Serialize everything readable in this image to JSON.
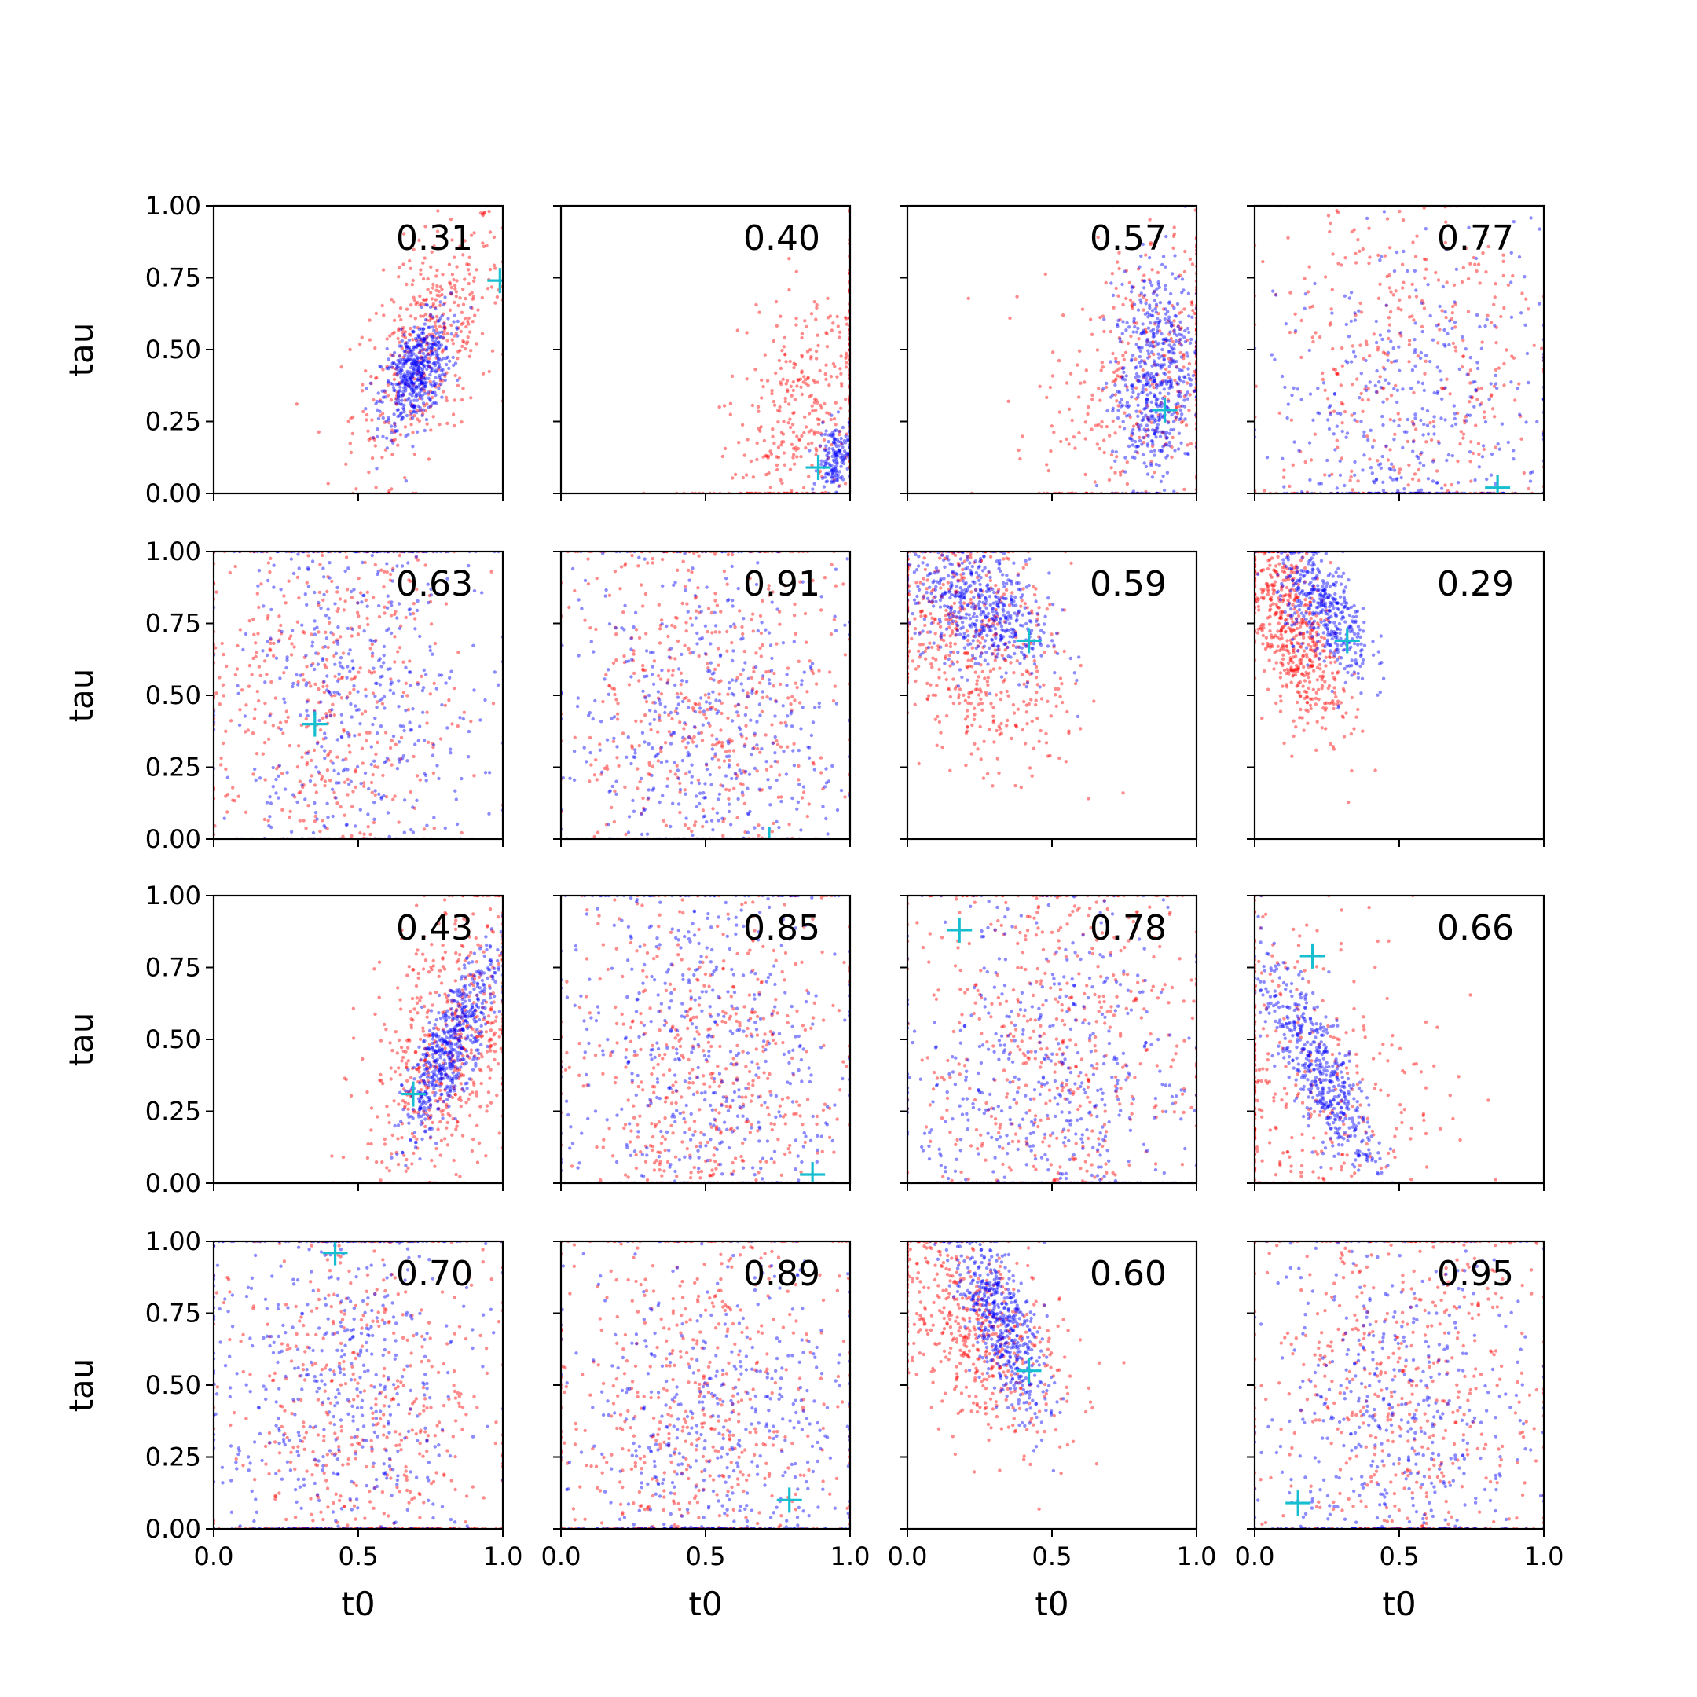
{
  "chart_data": {
    "type": "scatter",
    "layout": "4x4 grid of scatter subplots, shared axes",
    "xlabel": "t0",
    "ylabel": "tau",
    "xlim": [
      0,
      1
    ],
    "ylim": [
      0,
      1
    ],
    "x_ticks": [
      "0.0",
      "0.5",
      "1.0"
    ],
    "y_ticks": [
      "0.00",
      "0.25",
      "0.50",
      "0.75",
      "1.00"
    ],
    "colors": {
      "series_a": "#ff0000",
      "series_b": "#0000ff",
      "marker": "#17becf",
      "axes": "#000000"
    },
    "grid": false,
    "legend": "none",
    "panels": [
      {
        "label": "0.31",
        "marker": [
          0.99,
          0.74
        ],
        "red": {
          "n": 420,
          "cx": 0.74,
          "cy": 0.52,
          "sx": 0.13,
          "sy": 0.22,
          "rho": 0.55
        },
        "blue": {
          "n": 520,
          "cx": 0.7,
          "cy": 0.42,
          "sx": 0.06,
          "sy": 0.1,
          "rho": 0.5
        }
      },
      {
        "label": "0.40",
        "marker": [
          0.89,
          0.09
        ],
        "red": {
          "n": 380,
          "cx": 0.85,
          "cy": 0.28,
          "sx": 0.15,
          "sy": 0.25,
          "rho": 0.5
        },
        "blue": {
          "n": 160,
          "cx": 0.95,
          "cy": 0.13,
          "sx": 0.03,
          "sy": 0.06,
          "rho": 0.3
        }
      },
      {
        "label": "0.57",
        "marker": [
          0.89,
          0.29
        ],
        "red": {
          "n": 380,
          "cx": 0.82,
          "cy": 0.4,
          "sx": 0.18,
          "sy": 0.28,
          "rho": 0.3
        },
        "blue": {
          "n": 540,
          "cx": 0.85,
          "cy": 0.4,
          "sx": 0.07,
          "sy": 0.2,
          "rho": 0.2
        }
      },
      {
        "label": "0.77",
        "marker": [
          0.84,
          0.02
        ],
        "red": {
          "n": 420,
          "cx": 0.55,
          "cy": 0.45,
          "sx": 0.4,
          "sy": 0.4,
          "rho": 0
        },
        "blue": {
          "n": 420,
          "cx": 0.6,
          "cy": 0.25,
          "sx": 0.4,
          "sy": 0.3,
          "rho": 0
        }
      },
      {
        "label": "0.63",
        "marker": [
          0.35,
          0.4
        ],
        "red": {
          "n": 520,
          "cx": 0.3,
          "cy": 0.45,
          "sx": 0.35,
          "sy": 0.4,
          "rho": 0
        },
        "blue": {
          "n": 520,
          "cx": 0.45,
          "cy": 0.5,
          "sx": 0.35,
          "sy": 0.4,
          "rho": 0
        }
      },
      {
        "label": "0.91",
        "marker": [
          0.72,
          0.0
        ],
        "red": {
          "n": 560,
          "cx": 0.5,
          "cy": 0.45,
          "sx": 0.4,
          "sy": 0.4,
          "rho": 0
        },
        "blue": {
          "n": 500,
          "cx": 0.5,
          "cy": 0.35,
          "sx": 0.4,
          "sy": 0.35,
          "rho": 0
        }
      },
      {
        "label": "0.59",
        "marker": [
          0.42,
          0.69
        ],
        "red": {
          "n": 560,
          "cx": 0.2,
          "cy": 0.7,
          "sx": 0.18,
          "sy": 0.22,
          "rho": -0.4
        },
        "blue": {
          "n": 520,
          "cx": 0.25,
          "cy": 0.8,
          "sx": 0.12,
          "sy": 0.12,
          "rho": -0.4
        }
      },
      {
        "label": "0.29",
        "marker": [
          0.32,
          0.69
        ],
        "red": {
          "n": 560,
          "cx": 0.12,
          "cy": 0.74,
          "sx": 0.09,
          "sy": 0.18,
          "rho": -0.6
        },
        "blue": {
          "n": 420,
          "cx": 0.24,
          "cy": 0.8,
          "sx": 0.08,
          "sy": 0.12,
          "rho": -0.6
        }
      },
      {
        "label": "0.43",
        "marker": [
          0.69,
          0.31
        ],
        "red": {
          "n": 560,
          "cx": 0.8,
          "cy": 0.45,
          "sx": 0.14,
          "sy": 0.28,
          "rho": 0.4
        },
        "blue": {
          "n": 580,
          "cx": 0.82,
          "cy": 0.48,
          "sx": 0.08,
          "sy": 0.16,
          "rho": 0.8
        }
      },
      {
        "label": "0.85",
        "marker": [
          0.87,
          0.03
        ],
        "red": {
          "n": 560,
          "cx": 0.5,
          "cy": 0.35,
          "sx": 0.4,
          "sy": 0.35,
          "rho": 0
        },
        "blue": {
          "n": 560,
          "cx": 0.5,
          "cy": 0.4,
          "sx": 0.4,
          "sy": 0.4,
          "rho": 0
        }
      },
      {
        "label": "0.78",
        "marker": [
          0.18,
          0.88
        ],
        "red": {
          "n": 560,
          "cx": 0.5,
          "cy": 0.45,
          "sx": 0.4,
          "sy": 0.4,
          "rho": 0
        },
        "blue": {
          "n": 560,
          "cx": 0.45,
          "cy": 0.3,
          "sx": 0.4,
          "sy": 0.35,
          "rho": 0
        }
      },
      {
        "label": "0.66",
        "marker": [
          0.2,
          0.79
        ],
        "red": {
          "n": 420,
          "cx": 0.15,
          "cy": 0.3,
          "sx": 0.25,
          "sy": 0.35,
          "rho": 0
        },
        "blue": {
          "n": 520,
          "cx": 0.22,
          "cy": 0.4,
          "sx": 0.1,
          "sy": 0.18,
          "rho": -0.8
        }
      },
      {
        "label": "0.70",
        "marker": [
          0.42,
          0.96
        ],
        "red": {
          "n": 560,
          "cx": 0.55,
          "cy": 0.4,
          "sx": 0.4,
          "sy": 0.4,
          "rho": 0
        },
        "blue": {
          "n": 560,
          "cx": 0.35,
          "cy": 0.5,
          "sx": 0.4,
          "sy": 0.4,
          "rho": 0
        }
      },
      {
        "label": "0.89",
        "marker": [
          0.79,
          0.1
        ],
        "red": {
          "n": 560,
          "cx": 0.45,
          "cy": 0.4,
          "sx": 0.4,
          "sy": 0.4,
          "rho": 0
        },
        "blue": {
          "n": 500,
          "cx": 0.6,
          "cy": 0.3,
          "sx": 0.4,
          "sy": 0.35,
          "rho": 0
        }
      },
      {
        "label": "0.60",
        "marker": [
          0.42,
          0.55
        ],
        "red": {
          "n": 520,
          "cx": 0.22,
          "cy": 0.7,
          "sx": 0.16,
          "sy": 0.2,
          "rho": -0.5
        },
        "blue": {
          "n": 520,
          "cx": 0.32,
          "cy": 0.72,
          "sx": 0.08,
          "sy": 0.16,
          "rho": -0.7
        }
      },
      {
        "label": "0.95",
        "marker": [
          0.15,
          0.09
        ],
        "red": {
          "n": 560,
          "cx": 0.55,
          "cy": 0.45,
          "sx": 0.4,
          "sy": 0.4,
          "rho": 0
        },
        "blue": {
          "n": 500,
          "cx": 0.45,
          "cy": 0.35,
          "sx": 0.4,
          "sy": 0.35,
          "rho": 0
        }
      }
    ]
  }
}
